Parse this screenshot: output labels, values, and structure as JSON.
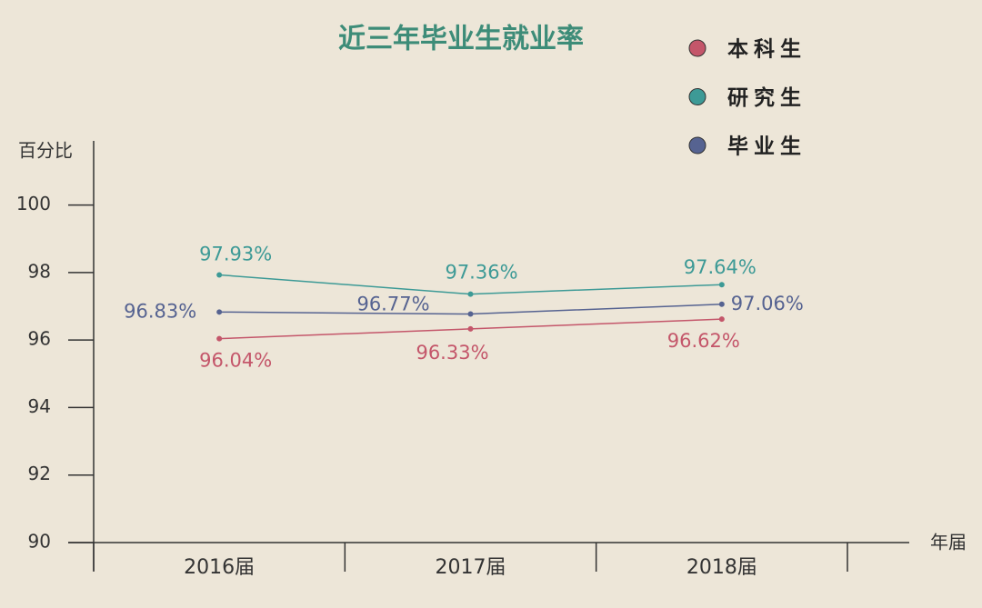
{
  "chart_data": {
    "type": "line",
    "title": "近三年毕业生就业率",
    "y_label": "百分比",
    "x_label": "年届",
    "categories": [
      "2016届",
      "2017届",
      "2018届"
    ],
    "series": [
      {
        "name": "本科生",
        "color": "#c4566a",
        "values": [
          96.04,
          96.33,
          96.62
        ],
        "value_labels": [
          "96.04%",
          "96.33%",
          "96.62%"
        ]
      },
      {
        "name": "研究生",
        "color": "#3d9a96",
        "values": [
          97.93,
          97.36,
          97.64
        ],
        "value_labels": [
          "97.93%",
          "97.36%",
          "97.64%"
        ]
      },
      {
        "name": "毕业生",
        "color": "#566391",
        "values": [
          96.83,
          96.77,
          97.06
        ],
        "value_labels": [
          "96.83%",
          "96.77%",
          "97.06%"
        ]
      }
    ],
    "ylim": [
      90,
      101.9
    ],
    "yticks": [
      90,
      92,
      94,
      96,
      98,
      100
    ],
    "legend": "top-right"
  }
}
